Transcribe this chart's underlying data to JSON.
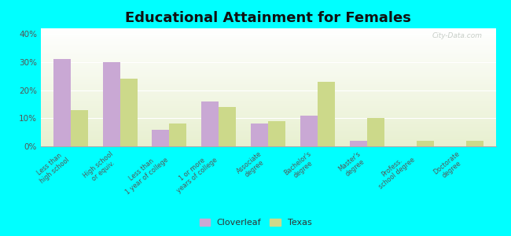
{
  "title": "Educational Attainment for Females",
  "categories": [
    "Less than\nhigh school",
    "High school\nor equiv.",
    "Less than\n1 year of college",
    "1 or more\nyears of college",
    "Associate\ndegree",
    "Bachelor's\ndegree",
    "Master's\ndegree",
    "Profess.\nschool degree",
    "Doctorate\ndegree"
  ],
  "cloverleaf": [
    31,
    30,
    6,
    16,
    8,
    11,
    2,
    0,
    0
  ],
  "texas": [
    13,
    24,
    8,
    14,
    9,
    23,
    10,
    2,
    2
  ],
  "cloverleaf_color": "#c9a8d4",
  "texas_color": "#ccd98a",
  "background_color": "#00ffff",
  "ylim": [
    0,
    42
  ],
  "yticks": [
    0,
    10,
    20,
    30,
    40
  ],
  "ytick_labels": [
    "0%",
    "10%",
    "20%",
    "30%",
    "40%"
  ],
  "bar_width": 0.35,
  "title_fontsize": 13,
  "legend_labels": [
    "Cloverleaf",
    "Texas"
  ]
}
